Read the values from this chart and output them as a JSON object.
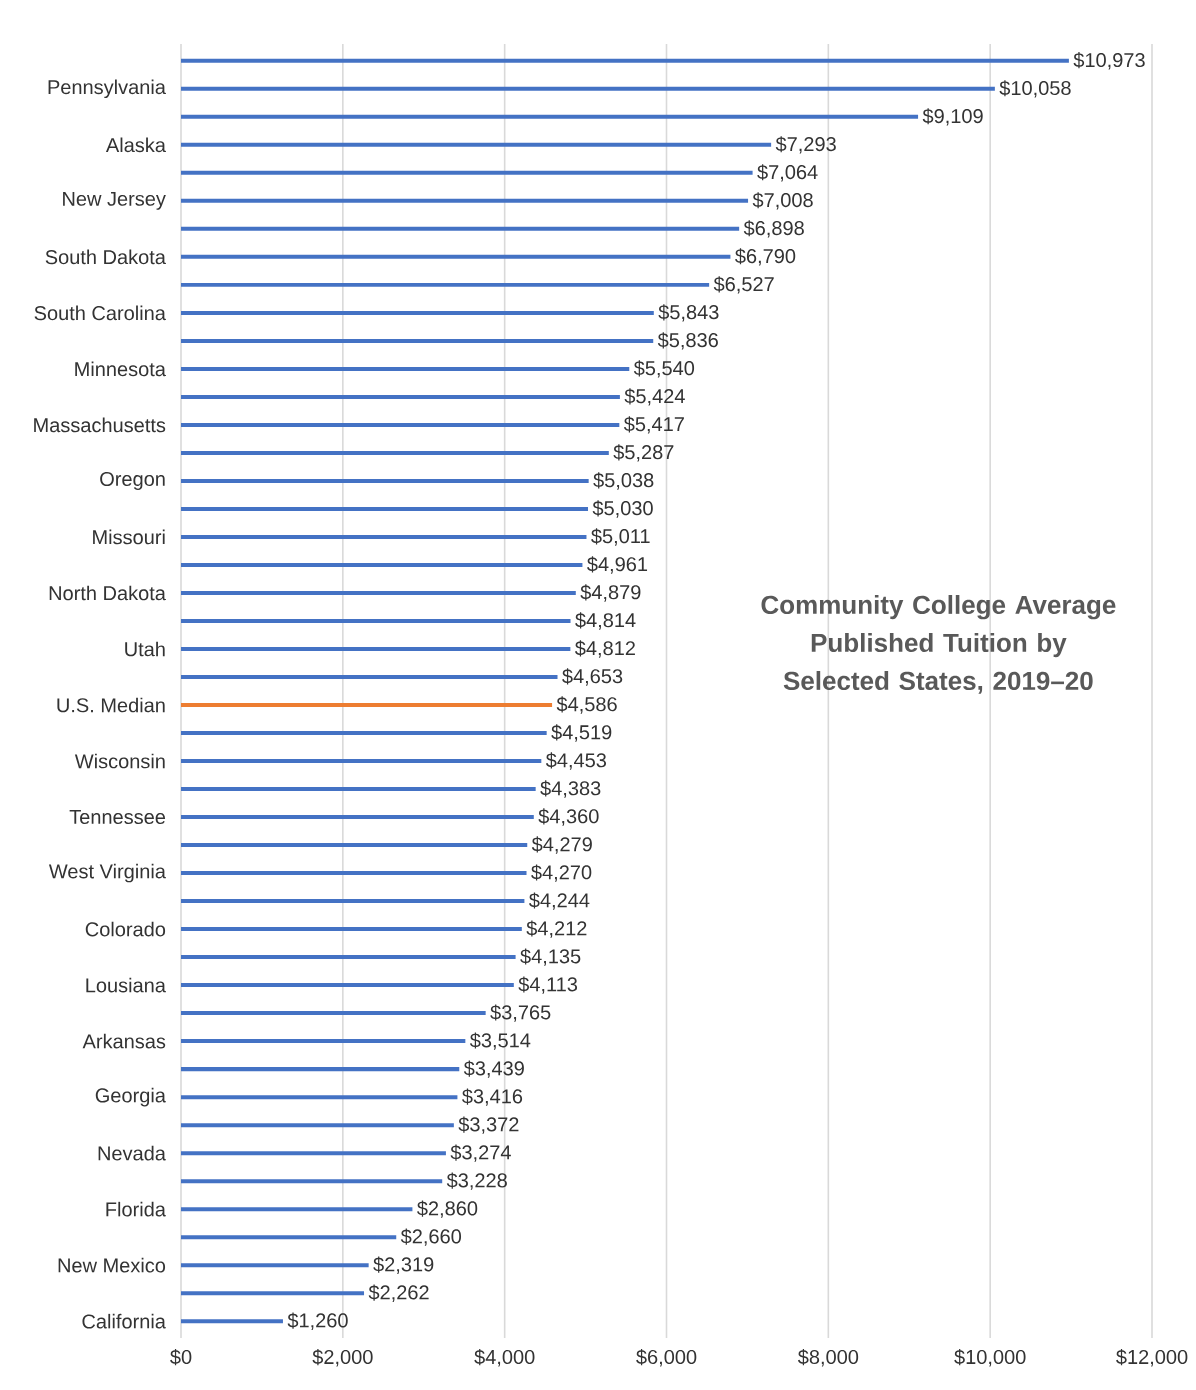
{
  "chart_data": {
    "type": "bar",
    "orientation": "horizontal",
    "title": "Community College Average Published Tuition by Selected States, 2019–20",
    "categories": [
      null,
      "Pennsylvania",
      null,
      "Alaska",
      null,
      "New Jersey",
      null,
      "South Dakota",
      null,
      "South Carolina",
      null,
      "Minnesota",
      null,
      "Massachusetts",
      null,
      "Oregon",
      null,
      "Missouri",
      null,
      "North Dakota",
      null,
      "Utah",
      null,
      "U.S. Median",
      null,
      "Wisconsin",
      null,
      "Tennessee",
      null,
      "West Virginia",
      null,
      "Colorado",
      null,
      "Lousiana",
      null,
      "Arkansas",
      null,
      "Georgia",
      null,
      "Nevada",
      null,
      "Florida",
      null,
      "New Mexico",
      null,
      "California"
    ],
    "values": [
      10973,
      10058,
      9109,
      7293,
      7064,
      7008,
      6898,
      6790,
      6527,
      5843,
      5836,
      5540,
      5424,
      5417,
      5287,
      5038,
      5030,
      5011,
      4961,
      4879,
      4814,
      4812,
      4653,
      4586,
      4519,
      4453,
      4383,
      4360,
      4279,
      4270,
      4244,
      4212,
      4135,
      4113,
      3765,
      3514,
      3439,
      3416,
      3372,
      3274,
      3228,
      2860,
      2660,
      2319,
      2262,
      1260
    ],
    "value_labels": [
      "$10,973",
      "$10,058",
      "$9,109",
      "$7,293",
      "$7,064",
      "$7,008",
      "$6,898",
      "$6,790",
      "$6,527",
      "$5,843",
      "$5,836",
      "$5,540",
      "$5,424",
      "$5,417",
      "$5,287",
      "$5,038",
      "$5,030",
      "$5,011",
      "$4,961",
      "$4,879",
      "$4,814",
      "$4,812",
      "$4,653",
      "$4,586",
      "$4,519",
      "$4,453",
      "$4,383",
      "$4,360",
      "$4,279",
      "$4,270",
      "$4,244",
      "$4,212",
      "$4,135",
      "$4,113",
      "$3,765",
      "$3,514",
      "$3,439",
      "$3,416",
      "$3,372",
      "$3,274",
      "$3,228",
      "$2,860",
      "$2,660",
      "$2,319",
      "$2,262",
      "$1,260"
    ],
    "colors": [
      "#4472c4",
      "#4472c4",
      "#4472c4",
      "#4472c4",
      "#4472c4",
      "#4472c4",
      "#4472c4",
      "#4472c4",
      "#4472c4",
      "#4472c4",
      "#4472c4",
      "#4472c4",
      "#4472c4",
      "#4472c4",
      "#4472c4",
      "#4472c4",
      "#4472c4",
      "#4472c4",
      "#4472c4",
      "#4472c4",
      "#4472c4",
      "#4472c4",
      "#4472c4",
      "#ed7d31",
      "#4472c4",
      "#4472c4",
      "#4472c4",
      "#4472c4",
      "#4472c4",
      "#4472c4",
      "#4472c4",
      "#4472c4",
      "#4472c4",
      "#4472c4",
      "#4472c4",
      "#4472c4",
      "#4472c4",
      "#4472c4",
      "#4472c4",
      "#4472c4",
      "#4472c4",
      "#4472c4",
      "#4472c4",
      "#4472c4",
      "#4472c4",
      "#4472c4"
    ],
    "xlim": [
      0,
      12000
    ],
    "xticks": [
      {
        "value": 0,
        "label": "$0"
      },
      {
        "value": 2000,
        "label": "$2,000"
      },
      {
        "value": 4000,
        "label": "$4,000"
      },
      {
        "value": 6000,
        "label": "$6,000"
      },
      {
        "value": 8000,
        "label": "$8,000"
      },
      {
        "value": 10000,
        "label": "$10,000"
      },
      {
        "value": 12000,
        "label": "$12,000"
      }
    ],
    "grid": "x"
  }
}
